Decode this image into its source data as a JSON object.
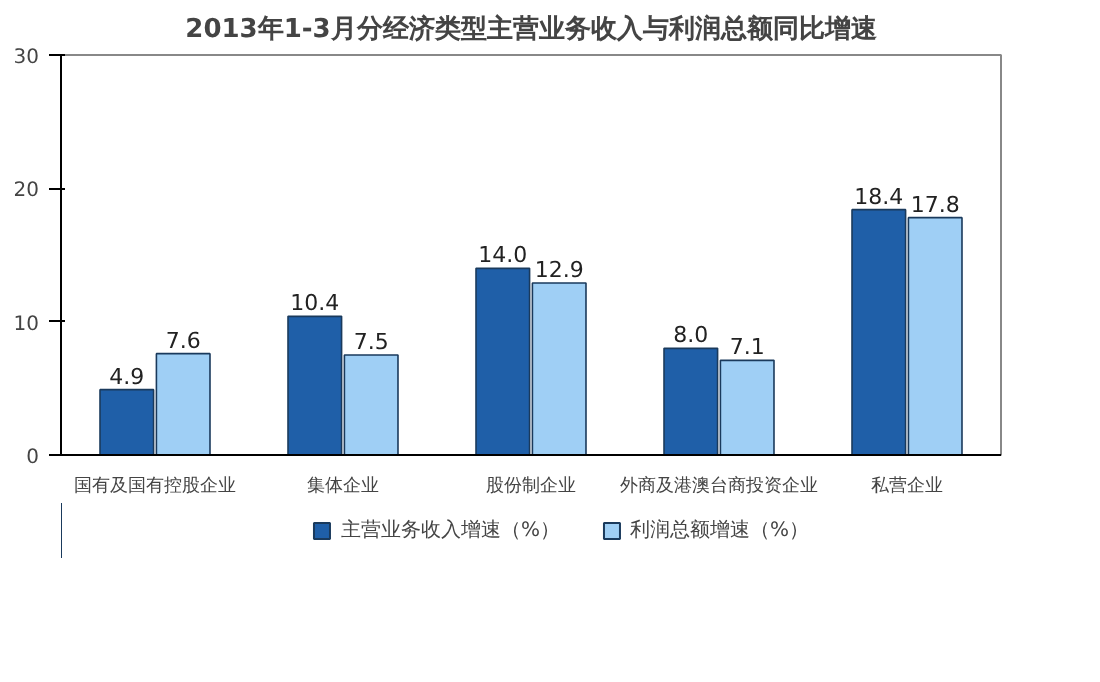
{
  "chart_data": {
    "type": "bar",
    "title": "2013年1-3月分经济类型主营业务收入与利润总额同比增速",
    "categories": [
      "国有及国有控股企业",
      "集体企业",
      "股份制企业",
      "外商及港澳台商投资企业",
      "私营企业"
    ],
    "series": [
      {
        "name": "主营业务收入增速（%）",
        "color": "#1f5fa8",
        "values": [
          4.9,
          10.4,
          14.0,
          8.0,
          18.4
        ]
      },
      {
        "name": "利润总额增速（%）",
        "color": "#9fcff5",
        "values": [
          7.6,
          7.5,
          12.9,
          7.1,
          17.8
        ]
      }
    ],
    "value_labels": [
      [
        "4.9",
        "10.4",
        "14.0",
        "8.0",
        "18.4"
      ],
      [
        "7.6",
        "7.5",
        "12.9",
        "7.1",
        "17.8"
      ]
    ],
    "ylim": [
      0,
      30
    ],
    "yticks": [
      0,
      10,
      20,
      30
    ],
    "legend": "bottom",
    "grid": false
  }
}
